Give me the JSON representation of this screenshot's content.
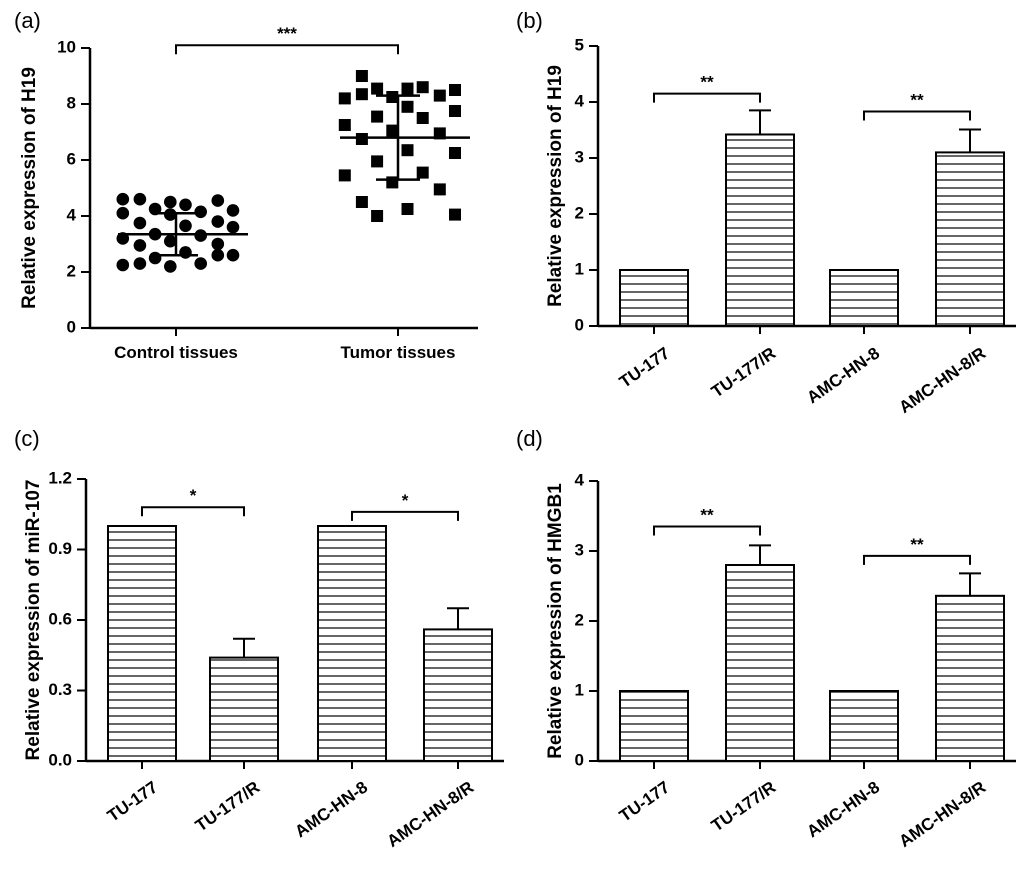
{
  "chart_data": [
    {
      "id": "a",
      "panel_label": "(a)",
      "type": "scatter",
      "ylabel": "Relative expression of H19",
      "ylim": [
        0,
        10
      ],
      "yticks": [
        "0",
        "2",
        "4",
        "6",
        "8",
        "10"
      ],
      "categories": [
        "Control tissues",
        "Tumor  tissues"
      ],
      "groups": [
        {
          "marker": "circle",
          "mean": 3.35,
          "sd_low": 2.6,
          "sd_high": 4.1,
          "values": [
            4.6,
            4.5,
            4.55,
            4.6,
            4.4,
            4.2,
            4.25,
            4.15,
            4.1,
            4.05,
            3.8,
            3.75,
            3.65,
            3.6,
            3.35,
            3.3,
            3.2,
            3.1,
            3.0,
            2.95,
            2.7,
            2.6,
            2.5,
            2.3,
            2.25,
            2.2,
            2.6,
            2.3
          ]
        },
        {
          "marker": "square",
          "mean": 6.8,
          "sd_low": 5.3,
          "sd_high": 8.3,
          "values": [
            9.0,
            8.55,
            8.5,
            8.55,
            8.6,
            8.2,
            8.25,
            8.3,
            8.35,
            7.9,
            7.75,
            7.55,
            7.5,
            7.25,
            7.05,
            6.95,
            6.75,
            6.35,
            6.25,
            5.95,
            5.55,
            5.45,
            5.2,
            4.95,
            4.5,
            4.25,
            4.05,
            4.0
          ]
        }
      ],
      "annotations": [
        {
          "label": "***",
          "from": 0,
          "to": 1,
          "y": 10.1
        }
      ]
    },
    {
      "id": "b",
      "panel_label": "(b)",
      "type": "bar",
      "ylabel": "Relative expression of H19",
      "ylim": [
        0,
        5
      ],
      "yticks": [
        "0",
        "1",
        "2",
        "3",
        "4",
        "5"
      ],
      "categories": [
        "TU-177",
        "TU-177/R",
        "AMC-HN-8",
        "AMC-HN-8/R"
      ],
      "values": [
        1.0,
        3.42,
        1.0,
        3.1
      ],
      "errors": [
        0,
        0.43,
        0,
        0.41
      ],
      "annotations": [
        {
          "label": "**",
          "from": 0,
          "to": 1,
          "y": 4.15
        },
        {
          "label": "**",
          "from": 2,
          "to": 3,
          "y": 3.83
        }
      ]
    },
    {
      "id": "c",
      "panel_label": "(c)",
      "type": "bar",
      "ylabel": "Relative expression of miR-107",
      "ylim": [
        0,
        1.2
      ],
      "yticks": [
        "0.0",
        "0.3",
        "0.6",
        "0.9",
        "1.2"
      ],
      "categories": [
        "TU-177",
        "TU-177/R",
        "AMC-HN-8",
        "AMC-HN-8/R"
      ],
      "values": [
        1.0,
        0.44,
        1.0,
        0.56
      ],
      "errors": [
        0,
        0.08,
        0,
        0.09
      ],
      "annotations": [
        {
          "label": "*",
          "from": 0,
          "to": 1,
          "y": 1.08
        },
        {
          "label": "*",
          "from": 2,
          "to": 3,
          "y": 1.06
        }
      ]
    },
    {
      "id": "d",
      "panel_label": "(d)",
      "type": "bar",
      "ylabel": "Relative expression of HMGB1",
      "ylim": [
        0,
        4
      ],
      "yticks": [
        "0",
        "1",
        "2",
        "3",
        "4"
      ],
      "categories": [
        "TU-177",
        "TU-177/R",
        "AMC-HN-8",
        "AMC-HN-8/R"
      ],
      "values": [
        1.0,
        2.8,
        1.0,
        2.36
      ],
      "errors": [
        0,
        0.28,
        0,
        0.32
      ],
      "annotations": [
        {
          "label": "**",
          "from": 0,
          "to": 1,
          "y": 3.35
        },
        {
          "label": "**",
          "from": 2,
          "to": 3,
          "y": 2.93
        }
      ]
    }
  ]
}
